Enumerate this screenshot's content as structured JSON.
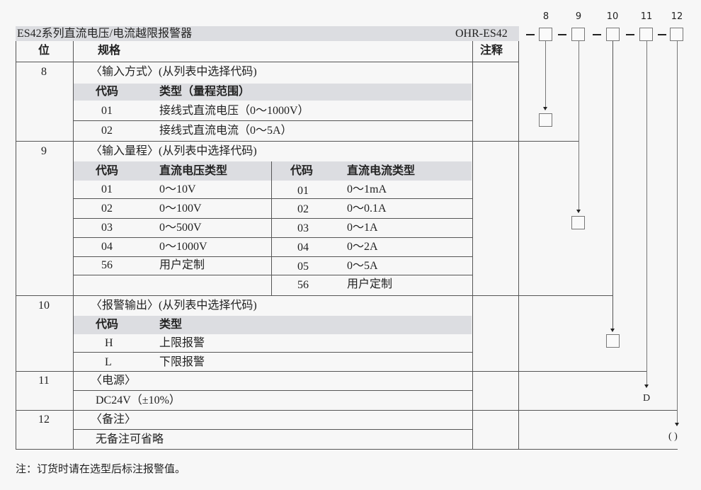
{
  "title": "ES42系列直流电压/电流越限报警器",
  "model": "OHR-ES42",
  "headers": {
    "position": "位",
    "spec": "规格",
    "notes": "注释"
  },
  "code_digits": [
    "8",
    "9",
    "10",
    "11",
    "12"
  ],
  "sec8": {
    "pos": "8",
    "title": "〈输入方式〉(从列表中选择代码)",
    "code_h": "代码",
    "type_h": "类型（量程范围）",
    "rows": [
      {
        "code": "01",
        "type": "接线式直流电压（0～1000V）"
      },
      {
        "code": "02",
        "type": "接线式直流电流（0～5A）"
      }
    ]
  },
  "sec9": {
    "pos": "9",
    "title": "〈输入量程〉(从列表中选择代码)",
    "code_h": "代码",
    "v_h": "直流电压类型",
    "code_h2": "代码",
    "a_h": "直流电流类型",
    "v_rows": [
      {
        "code": "01",
        "type": "0～10V"
      },
      {
        "code": "02",
        "type": "0～100V"
      },
      {
        "code": "03",
        "type": "0～500V"
      },
      {
        "code": "04",
        "type": "0～1000V"
      },
      {
        "code": "56",
        "type": "用户定制"
      }
    ],
    "a_rows": [
      {
        "code": "01",
        "type": "0～1mA"
      },
      {
        "code": "02",
        "type": "0～0.1A"
      },
      {
        "code": "03",
        "type": "0～1A"
      },
      {
        "code": "04",
        "type": "0～2A"
      },
      {
        "code": "05",
        "type": "0～5A"
      },
      {
        "code": "56",
        "type": "用户定制"
      }
    ]
  },
  "sec10": {
    "pos": "10",
    "title": "〈报警输出〉(从列表中选择代码)",
    "code_h": "代码",
    "type_h": "类型",
    "rows": [
      {
        "code": "H",
        "type": "上限报警"
      },
      {
        "code": "L",
        "type": "下限报警"
      }
    ]
  },
  "sec11": {
    "pos": "11",
    "title": "〈电源〉",
    "value": "DC24V（±10%）",
    "result": "D"
  },
  "sec12": {
    "pos": "12",
    "title": "〈备注〉",
    "value": "无备注可省略",
    "result": "( )"
  },
  "footnote": "注：订货时请在选型后标注报警值。"
}
